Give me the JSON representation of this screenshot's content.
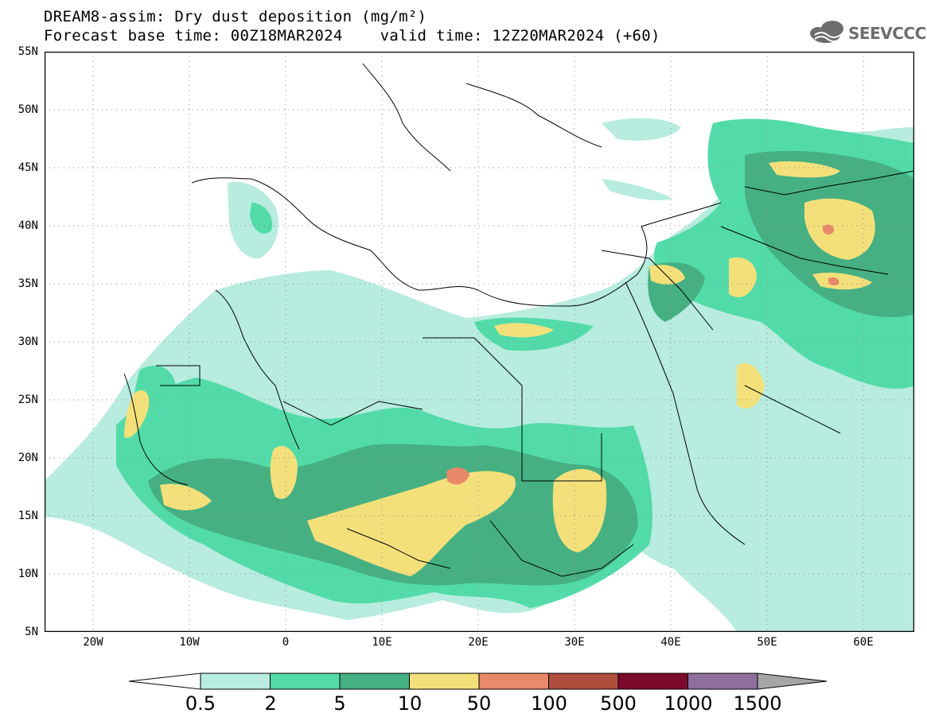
{
  "header": {
    "title": "DREAM8-assim: Dry dust deposition (mg/m²)",
    "subtitle": "Forecast base time: 00Z18MAR2024    valid time: 12Z20MAR2024 (+60)",
    "logo_text": "SEEVCCC"
  },
  "map": {
    "lat_labels": [
      "55N",
      "50N",
      "45N",
      "40N",
      "35N",
      "30N",
      "25N",
      "20N",
      "15N",
      "10N",
      "5N"
    ],
    "lon_labels": [
      "20W",
      "10W",
      "0",
      "10E",
      "20E",
      "30E",
      "40E",
      "50E",
      "60E"
    ]
  },
  "legend": {
    "labels": [
      "0.5",
      "2",
      "5",
      "10",
      "50",
      "100",
      "500",
      "1000",
      "1500"
    ],
    "colors": [
      "#b7ecdf",
      "#52dba8",
      "#46b083",
      "#f4e07a",
      "#e8896a",
      "#b04d3d",
      "#7b0a2c",
      "#8e6f9e"
    ],
    "under_color": "#ffffff",
    "over_color": "#a6a6a6"
  }
}
